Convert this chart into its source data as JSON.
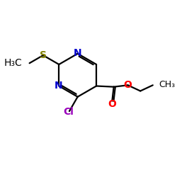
{
  "background": "#ffffff",
  "ring_color": "#000000",
  "N_color": "#0000cc",
  "S_color": "#808000",
  "O_color": "#ff0000",
  "Cl_color": "#9900bb",
  "bond_lw": 1.6,
  "font_size": 10,
  "fig_size": [
    2.5,
    2.5
  ],
  "dpi": 100,
  "xlim": [
    0,
    10
  ],
  "ylim": [
    0,
    10
  ]
}
